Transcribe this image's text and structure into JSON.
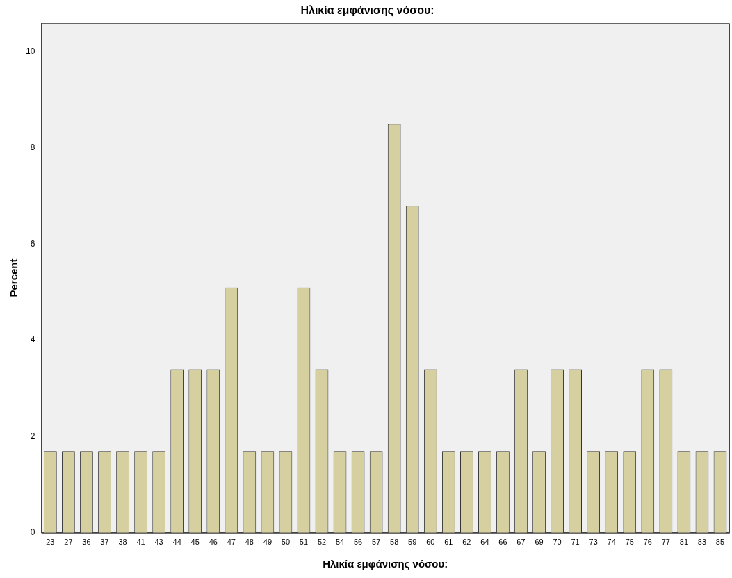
{
  "chart_data": {
    "type": "bar",
    "title": "Ηλικία εμφάνισης νόσου:",
    "xlabel": "Ηλικία εμφάνισης νόσου:",
    "ylabel": "Percent",
    "categories": [
      "23",
      "27",
      "36",
      "37",
      "38",
      "41",
      "43",
      "44",
      "45",
      "46",
      "47",
      "48",
      "49",
      "50",
      "51",
      "52",
      "54",
      "56",
      "57",
      "58",
      "59",
      "60",
      "61",
      "62",
      "64",
      "66",
      "67",
      "69",
      "70",
      "71",
      "73",
      "74",
      "75",
      "76",
      "77",
      "81",
      "83",
      "85"
    ],
    "values": [
      1.7,
      1.7,
      1.7,
      1.7,
      1.7,
      1.7,
      1.7,
      3.4,
      3.4,
      3.4,
      5.1,
      1.7,
      1.7,
      1.7,
      5.1,
      3.4,
      1.7,
      1.7,
      1.7,
      8.5,
      6.8,
      3.4,
      1.7,
      1.7,
      1.7,
      1.7,
      3.4,
      1.7,
      3.4,
      3.4,
      1.7,
      1.7,
      1.7,
      3.4,
      3.4,
      1.7,
      1.7,
      1.7
    ],
    "color": "#d6cf9f",
    "ylim": [
      0,
      10.6
    ],
    "yticks": [
      0,
      2,
      4,
      6,
      8,
      10
    ],
    "grid": false,
    "legend": false
  }
}
